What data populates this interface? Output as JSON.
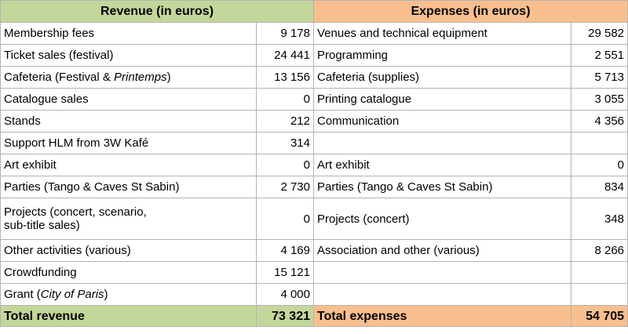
{
  "header": {
    "revenue_title": "Revenue (in euros)",
    "expenses_title": "Expenses (in euros)"
  },
  "rows": [
    {
      "rev_label": "Membership fees",
      "rev_value": "9 178",
      "exp_label": "Venues and technical equipment",
      "exp_value": "29 582"
    },
    {
      "rev_label": "Ticket sales (festival)",
      "rev_value": "24 441",
      "exp_label": "Programming",
      "exp_value": "2 551"
    },
    {
      "rev_label_prefix": "Cafeteria (Festival & ",
      "rev_label_italic": "Printemps",
      "rev_label_suffix": ")",
      "rev_value": "13 156",
      "exp_label": "Cafeteria (supplies)",
      "exp_value": "5 713"
    },
    {
      "rev_label": "Catalogue sales",
      "rev_value": "0",
      "exp_label": "Printing catalogue",
      "exp_value": "3 055"
    },
    {
      "rev_label": "Stands",
      "rev_value": "212",
      "exp_label": "Communication",
      "exp_value": "4 356"
    },
    {
      "rev_label": "Support HLM from 3W Kafé",
      "rev_value": "314",
      "exp_label": "",
      "exp_value": ""
    },
    {
      "rev_label": "Art exhibit",
      "rev_value": "0",
      "exp_label": "Art exhibit",
      "exp_value": "0"
    },
    {
      "rev_label": "Parties (Tango & Caves St Sabin)",
      "rev_value": "2 730",
      "exp_label": "Parties (Tango & Caves St Sabin)",
      "exp_value": "834"
    },
    {
      "rev_label_line1": "Projects (concert, scenario,",
      "rev_label_line2": "sub-title sales)",
      "rev_value": "0",
      "exp_label": "Projects (concert)",
      "exp_value": "348"
    },
    {
      "rev_label": "Other activities (various)",
      "rev_value": "4 169",
      "exp_label": "Association and other (various)",
      "exp_value": "8 266"
    },
    {
      "rev_label": "Crowdfunding",
      "rev_value": "15 121",
      "exp_label": "",
      "exp_value": ""
    },
    {
      "rev_label_prefix": "Grant (",
      "rev_label_italic": "City of Paris",
      "rev_label_suffix": ")",
      "rev_value": "4 000",
      "exp_label": "",
      "exp_value": ""
    }
  ],
  "totals": {
    "revenue_label": "Total revenue",
    "revenue_value": "73 321",
    "expenses_label": "Total expenses",
    "expenses_value": "54 705"
  },
  "colors": {
    "revenue_accent": "#c4d79b",
    "expenses_accent": "#fabf8f",
    "grid": "#b3b3b3"
  }
}
